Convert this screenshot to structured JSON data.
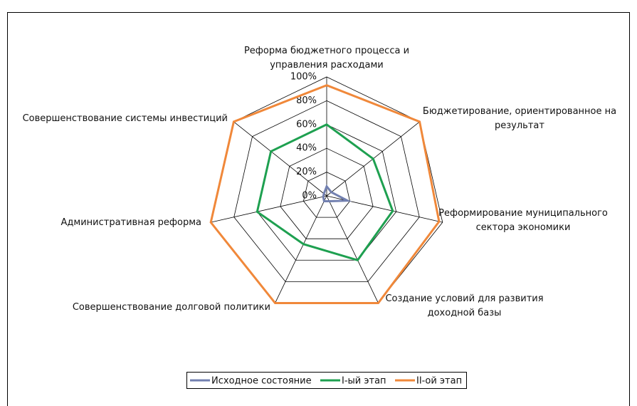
{
  "chart_data": {
    "type": "radar",
    "categories": [
      "Реформа бюджетного процесса и управления расходами",
      "Бюджетирование, ориентированное на результат",
      "Реформирование муниципального сектора экономики",
      "Создание условий для развития доходной базы",
      "Совершенствование долговой политики",
      "Административная реформа",
      "Совершенствование системы инвестиций"
    ],
    "series": [
      {
        "name": "Исходное состояние",
        "color": "#7280b0",
        "values": [
          8,
          5,
          18,
          5,
          5,
          3,
          3
        ]
      },
      {
        "name": "I-ый этап",
        "color": "#1ea050",
        "values": [
          60,
          50,
          57,
          60,
          45,
          60,
          60
        ]
      },
      {
        "name": "II-ой этап",
        "color": "#f0883a",
        "values": [
          93,
          100,
          97,
          100,
          100,
          100,
          100
        ]
      }
    ],
    "ylim": [
      0,
      100
    ],
    "yticks": [
      {
        "value": 0,
        "label": "0%"
      },
      {
        "value": 20,
        "label": "20%"
      },
      {
        "value": 40,
        "label": "40%"
      },
      {
        "value": 60,
        "label": "60%"
      },
      {
        "value": 80,
        "label": "80%"
      },
      {
        "value": 100,
        "label": "100%"
      }
    ],
    "grid": true,
    "legend": "bottom"
  }
}
